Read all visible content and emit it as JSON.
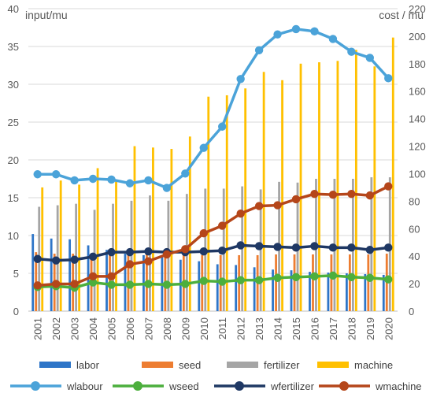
{
  "chart_data": {
    "type": "bar",
    "title": "",
    "left_axis_label": "input/mu",
    "right_axis_label": "cost / mu",
    "left_ylim": [
      0,
      40
    ],
    "left_ticks": [
      "0",
      "5",
      "10",
      "15",
      "20",
      "25",
      "30",
      "35",
      "40"
    ],
    "right_ylim": [
      0,
      220
    ],
    "right_ticks": [
      "0",
      "20",
      "40",
      "60",
      "80",
      "100",
      "120",
      "140",
      "160",
      "180",
      "200",
      "220"
    ],
    "grid": true,
    "legend_position": "bottom",
    "categories": [
      "2001",
      "2002",
      "2003",
      "2004",
      "2005",
      "2006",
      "2007",
      "2008",
      "2009",
      "2010",
      "2011",
      "2012",
      "2013",
      "2014",
      "2015",
      "2016",
      "2017",
      "2018",
      "2019",
      "2020"
    ],
    "bar_series": [
      {
        "name": "labor",
        "color": "#2E75C8",
        "axis": "left",
        "values": [
          10.2,
          9.6,
          9.5,
          8.7,
          8.1,
          7.6,
          7.4,
          7.3,
          6.8,
          6.6,
          6.2,
          6.1,
          5.8,
          5.5,
          5.4,
          5.2,
          5.1,
          5.0,
          4.9,
          4.8
        ]
      },
      {
        "name": "seed",
        "color": "#ED7D31",
        "axis": "left",
        "values": [
          7.8,
          7.6,
          7.6,
          7.5,
          7.7,
          7.6,
          7.5,
          7.5,
          7.4,
          7.4,
          7.4,
          7.4,
          7.4,
          7.5,
          7.5,
          7.5,
          7.5,
          7.5,
          7.5,
          7.6
        ]
      },
      {
        "name": "fertilizer",
        "color": "#A5A5A5",
        "axis": "left",
        "values": [
          13.8,
          14.0,
          14.2,
          13.4,
          14.2,
          14.6,
          15.3,
          14.6,
          15.5,
          16.2,
          16.2,
          16.5,
          16.1,
          17.1,
          17.0,
          17.5,
          17.5,
          17.5,
          17.7,
          17.7
        ]
      },
      {
        "name": "machine",
        "color": "#FFC000",
        "axis": "right",
        "values": [
          90,
          95,
          92,
          104,
          95,
          120,
          119,
          118,
          127,
          156,
          157,
          162,
          174,
          168,
          180,
          181,
          182,
          190,
          178,
          199
        ]
      }
    ],
    "line_series": [
      {
        "name": "wlabour",
        "color": "#4BA3D9",
        "axis": "left",
        "values": [
          18.1,
          18.1,
          17.3,
          17.5,
          17.4,
          16.9,
          17.3,
          16.3,
          18.2,
          21.6,
          24.4,
          30.7,
          34.5,
          36.6,
          37.3,
          37.0,
          36.0,
          34.3,
          33.5,
          30.8
        ]
      },
      {
        "name": "wseed",
        "color": "#4CAF3D",
        "axis": "left",
        "values": [
          3.2,
          3.3,
          3.1,
          3.8,
          3.5,
          3.5,
          3.6,
          3.5,
          3.6,
          4.0,
          3.9,
          4.1,
          4.1,
          4.4,
          4.5,
          4.6,
          4.7,
          4.5,
          4.4,
          4.2
        ]
      },
      {
        "name": "wfertilizer",
        "color": "#1F3864",
        "axis": "left",
        "values": [
          6.9,
          6.7,
          6.8,
          7.2,
          7.8,
          7.8,
          7.9,
          7.8,
          7.8,
          7.9,
          8.0,
          8.7,
          8.6,
          8.5,
          8.4,
          8.6,
          8.4,
          8.4,
          8.1,
          8.4
        ]
      },
      {
        "name": "wmachine",
        "color": "#B5461A",
        "axis": "left",
        "values": [
          3.4,
          3.6,
          3.6,
          4.6,
          4.6,
          6.2,
          6.6,
          7.5,
          8.2,
          10.3,
          11.3,
          12.9,
          13.9,
          14.0,
          14.8,
          15.5,
          15.4,
          15.5,
          15.3,
          16.5
        ]
      }
    ]
  }
}
